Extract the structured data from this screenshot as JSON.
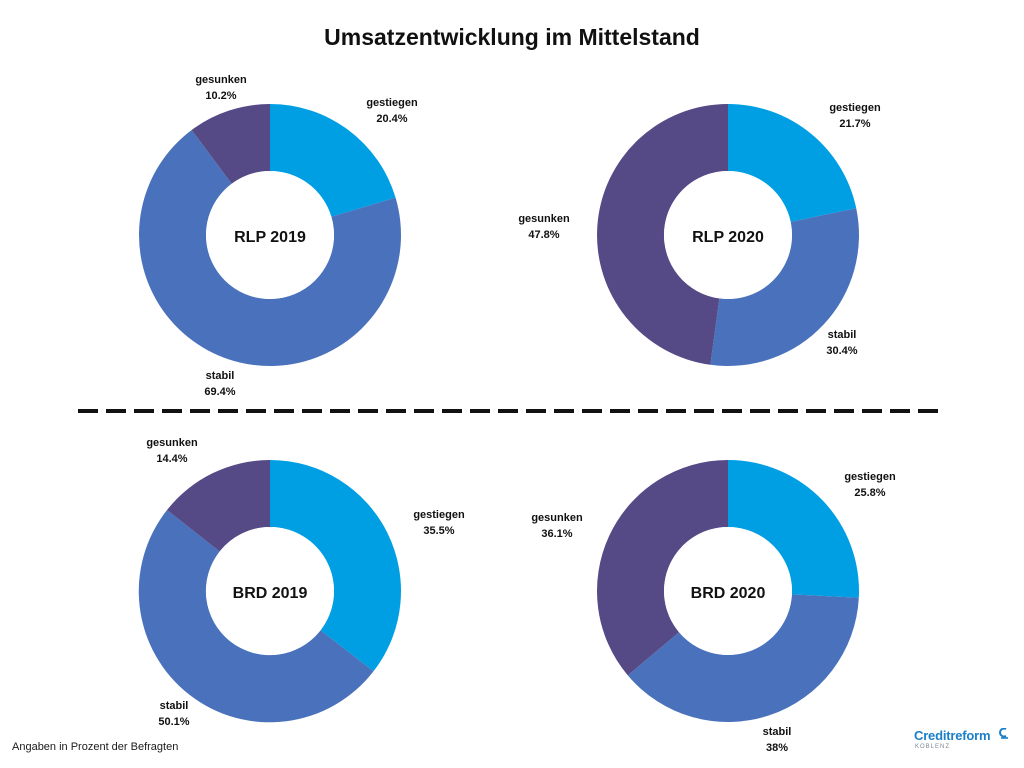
{
  "title": "Umsatzentwicklung im Mittelstand",
  "footnote": "Angaben in Prozent der Befragten",
  "logo": {
    "text": "Creditreform",
    "subtext": "KOBLENZ",
    "color": "#1a7fc8"
  },
  "colors": {
    "gestiegen": "#009fe3",
    "stabil": "#4a72bc",
    "gesunken": "#554986",
    "divider": "#111111"
  },
  "chart_data": [
    {
      "type": "pie",
      "title": "RLP 2019",
      "categories": [
        "gestiegen",
        "stabil",
        "gesunken"
      ],
      "values": [
        20.4,
        69.4,
        10.2
      ],
      "labels": [
        "20.4%",
        "69.4%",
        "10.2%"
      ]
    },
    {
      "type": "pie",
      "title": "RLP 2020",
      "categories": [
        "gestiegen",
        "stabil",
        "gesunken"
      ],
      "values": [
        21.7,
        30.4,
        47.8
      ],
      "labels": [
        "21.7%",
        "30.4%",
        "47.8%"
      ]
    },
    {
      "type": "pie",
      "title": "BRD 2019",
      "categories": [
        "gestiegen",
        "stabil",
        "gesunken"
      ],
      "values": [
        35.5,
        50.1,
        14.4
      ],
      "labels": [
        "35.5%",
        "50.1%",
        "14.4%"
      ]
    },
    {
      "type": "pie",
      "title": "BRD 2020",
      "categories": [
        "gestiegen",
        "stabil",
        "gesunken"
      ],
      "values": [
        25.8,
        38,
        36.1
      ],
      "labels": [
        "25.8%",
        "38%",
        "36.1%"
      ]
    }
  ]
}
